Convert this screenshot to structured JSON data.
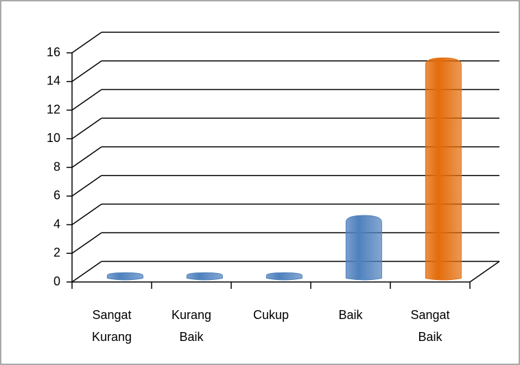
{
  "chart_data": {
    "type": "bar3d",
    "categories": [
      "Sangat Kurang",
      "Kurang Baik",
      "Cukup",
      "Baik",
      "Sangat Baik"
    ],
    "values": [
      0,
      0,
      0,
      4,
      15
    ],
    "colors": [
      "#4f81bd",
      "#4f81bd",
      "#4f81bd",
      "#4f81bd",
      "#e46c0a"
    ],
    "ylim": [
      0,
      16
    ],
    "yticks": [
      0,
      2,
      4,
      6,
      8,
      10,
      12,
      14,
      16
    ],
    "grid": true
  }
}
